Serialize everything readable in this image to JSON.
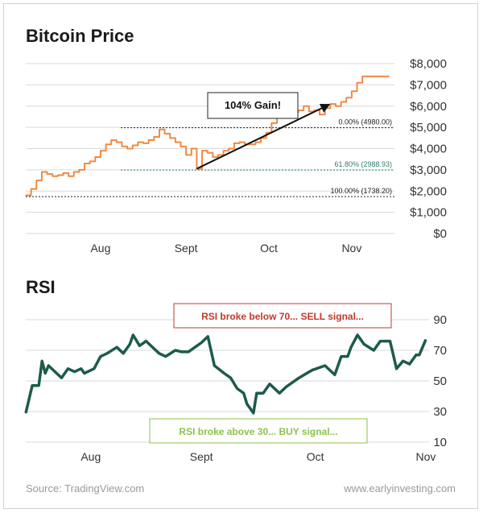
{
  "chart_data": [
    {
      "type": "line",
      "title": "Bitcoin Price",
      "y_tick_labels": [
        "$0",
        "$1,000",
        "$2,000",
        "$3,000",
        "$4,000",
        "$5,000",
        "$6,000",
        "$7,000",
        "$8,000"
      ],
      "y_ticks": [
        0,
        1000,
        2000,
        3000,
        4000,
        5000,
        6000,
        7000,
        8000
      ],
      "ylim": [
        0,
        8000
      ],
      "x_ticks": [
        {
          "label": "Aug",
          "x": 28
        },
        {
          "label": "Sept",
          "x": 60
        },
        {
          "label": "Oct",
          "x": 91
        },
        {
          "label": "Nov",
          "x": 122
        }
      ],
      "xlim": [
        0,
        138
      ],
      "grid": true,
      "series": [
        {
          "color": "#ef8a46",
          "x": [
            0,
            2,
            4,
            6,
            8,
            10,
            12,
            14,
            16,
            18,
            20,
            22,
            24,
            26,
            28,
            30,
            32,
            34,
            36,
            38,
            40,
            42,
            44,
            46,
            48,
            50,
            52,
            54,
            56,
            58,
            60,
            62,
            64,
            66,
            68,
            70,
            72,
            74,
            76,
            78,
            80,
            82,
            84,
            86,
            88,
            90,
            92,
            94,
            96,
            98,
            100,
            102,
            104,
            106,
            108,
            110,
            112,
            114,
            116,
            118,
            120,
            122,
            124,
            126,
            128,
            130,
            132,
            134,
            136
          ],
          "values": [
            1800,
            2100,
            2500,
            2900,
            2800,
            2700,
            2750,
            2850,
            2700,
            2900,
            3000,
            3300,
            3400,
            3600,
            3900,
            4200,
            4400,
            4300,
            4100,
            4000,
            4150,
            4300,
            4250,
            4400,
            4550,
            4900,
            4700,
            4500,
            4300,
            4100,
            3700,
            4000,
            3050,
            3900,
            3800,
            3600,
            3700,
            3900,
            4000,
            4250,
            4300,
            4200,
            4200,
            4300,
            4500,
            4750,
            5200,
            5500,
            5700,
            5850,
            5700,
            5800,
            6000,
            5750,
            5800,
            5600,
            5900,
            6100,
            6000,
            6200,
            6400,
            6700,
            7100,
            7400,
            7400,
            7400,
            7400,
            7400,
            7400
          ]
        }
      ],
      "annotations": [
        {
          "text": "0.00% (4980.00)",
          "value": 4980.0
        },
        {
          "text": "61.80% (2988.93)",
          "value": 2988.93,
          "color": "#2e7d6e"
        },
        {
          "text": "100.00% (1738.20)",
          "value": 1738.2
        },
        {
          "text": "104% Gain!"
        }
      ]
    },
    {
      "type": "line",
      "title": "RSI",
      "y_tick_labels": [
        "10",
        "30",
        "50",
        "70",
        "90"
      ],
      "y_ticks": [
        10,
        30,
        50,
        70,
        90
      ],
      "ylim": [
        10,
        90
      ],
      "x_ticks": [
        {
          "label": "Aug",
          "x": 20
        },
        {
          "label": "Sept",
          "x": 54
        },
        {
          "label": "Oct",
          "x": 89
        },
        {
          "label": "Nov",
          "x": 123
        }
      ],
      "xlim": [
        0,
        124
      ],
      "grid": true,
      "series": [
        {
          "color": "#1d5b4c",
          "x": [
            0,
            2,
            4,
            5,
            6,
            7,
            9,
            11,
            13,
            15,
            17,
            18,
            21,
            23,
            25,
            28,
            30,
            32,
            33,
            35,
            37,
            41,
            43,
            46,
            48,
            50,
            52,
            54,
            56,
            58,
            61,
            63,
            65,
            67,
            68,
            70,
            71,
            72,
            73,
            75,
            78,
            80,
            84,
            88,
            92,
            95,
            97,
            99,
            100,
            102,
            104,
            107,
            109,
            111,
            112,
            114,
            116,
            118,
            120,
            121,
            123
          ],
          "values": [
            29,
            47,
            47,
            63,
            55,
            60,
            56,
            52,
            58,
            56,
            58,
            55,
            58,
            66,
            68,
            72,
            68,
            74,
            80,
            73,
            76,
            68,
            66,
            70,
            69,
            69,
            72,
            75,
            79,
            60,
            55,
            52,
            45,
            42,
            35,
            29,
            42,
            42,
            42,
            48,
            42,
            46,
            52,
            57,
            60,
            54,
            66,
            66,
            72,
            80,
            74,
            70,
            76,
            76,
            76,
            58,
            63,
            61,
            67,
            67,
            77
          ]
        }
      ],
      "annotations": [
        {
          "text": "RSI broke below 70... SELL signal...",
          "color": "#c0392b"
        },
        {
          "text": "RSI broke above 30... BUY signal...",
          "color": "#8bc34a"
        }
      ]
    }
  ],
  "footer": {
    "source": "Source: TradingView.com",
    "site": "www.earlyinvesting.com"
  }
}
